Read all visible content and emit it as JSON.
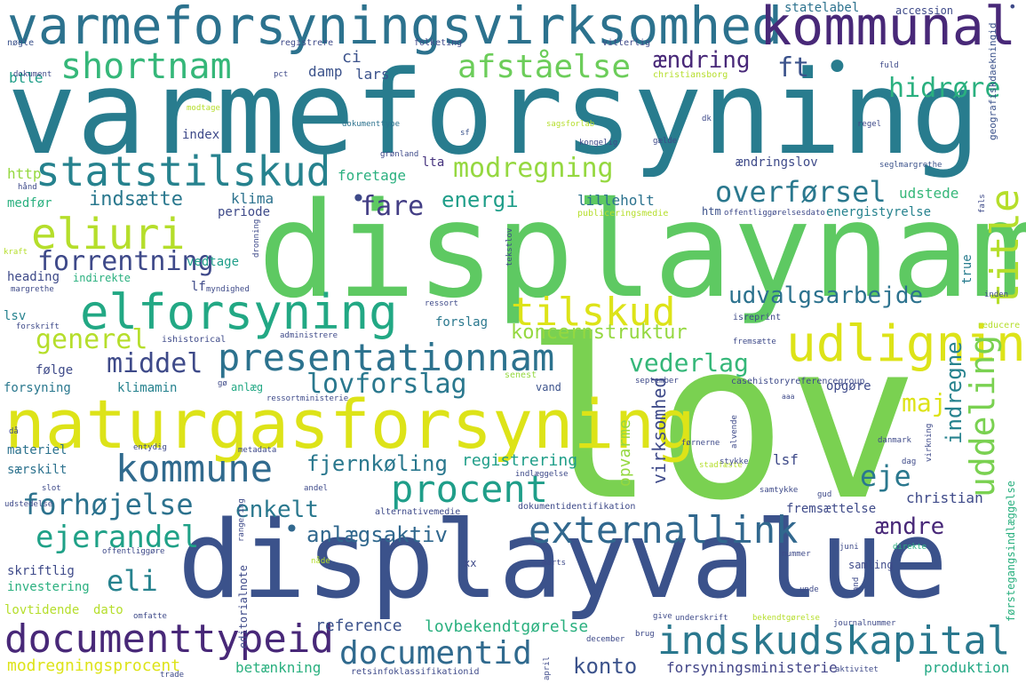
{
  "words": [
    {
      "text": "lov",
      "color": "#7ad151"
    },
    {
      "text": "varmeforsyning",
      "color": "#287c8e"
    },
    {
      "text": "displaynam",
      "color": "#5ec962"
    },
    {
      "text": "displayvalue",
      "color": "#3b528b"
    },
    {
      "text": "naturgasforsyning",
      "color": "#dde318"
    },
    {
      "text": "varmeforsyningsvirksomhed",
      "color": "#2c728e"
    },
    {
      "text": "kommunal",
      "color": "#482878"
    },
    {
      "text": "elforsyning",
      "color": "#22a884"
    },
    {
      "text": "udligning",
      "color": "#dde318"
    },
    {
      "text": "statstilskud",
      "color": "#26828e"
    },
    {
      "text": "documenttypeid",
      "color": "#482878"
    },
    {
      "text": "indskudskapital",
      "color": "#2a788e"
    },
    {
      "text": "presentationnam",
      "color": "#2c728e"
    },
    {
      "text": "externallink",
      "color": "#31688e"
    },
    {
      "text": "kommune",
      "color": "#306a8e"
    },
    {
      "text": "procent",
      "color": "#1f9e89"
    },
    {
      "text": "eliuri",
      "color": "#b5de2b"
    },
    {
      "text": "shortnam",
      "color": "#35b779"
    },
    {
      "text": "afståelse",
      "color": "#6ccd5a"
    },
    {
      "text": "tilskud",
      "color": "#dde318"
    },
    {
      "text": "uddeling",
      "color": "#7ad151"
    },
    {
      "text": "title",
      "color": "#b5de2b"
    },
    {
      "text": "modregning",
      "color": "#95d840"
    },
    {
      "text": "overførsel",
      "color": "#2a788e"
    },
    {
      "text": "documentid",
      "color": "#306a8e"
    },
    {
      "text": "forhøjelse",
      "color": "#2c728e"
    },
    {
      "text": "generel",
      "color": "#b5de2b"
    },
    {
      "text": "middel",
      "color": "#3e4a89"
    },
    {
      "text": "ejerandel",
      "color": "#1fa187"
    },
    {
      "text": "hidrøre",
      "color": "#2ab07f"
    },
    {
      "text": "forrentning",
      "color": "#3e4989"
    },
    {
      "text": "lovforslag",
      "color": "#2a788e"
    },
    {
      "text": "vederlag",
      "color": "#35b779"
    },
    {
      "text": "udvalgsarbejde",
      "color": "#2c728e"
    },
    {
      "text": "fare",
      "color": "#433e85"
    },
    {
      "text": "ændring",
      "color": "#482878"
    },
    {
      "text": "ft",
      "color": "#3b528b"
    },
    {
      "text": "eli",
      "color": "#26828e"
    },
    {
      "text": "enkelt",
      "color": "#2a788e"
    },
    {
      "text": "fjernkøling",
      "color": "#2a788e"
    },
    {
      "text": "anlægsaktiv",
      "color": "#31688e"
    },
    {
      "text": "ændre",
      "color": "#482878"
    },
    {
      "text": "eje",
      "color": "#2a788e"
    },
    {
      "text": "indregne",
      "color": "#26828e"
    },
    {
      "text": "maj",
      "color": "#dde318"
    },
    {
      "text": "koncernstruktur",
      "color": "#95d840"
    },
    {
      "text": "konto",
      "color": "#3b528b"
    },
    {
      "text": "energi",
      "color": "#1f9e89"
    },
    {
      "text": "indsætte",
      "color": "#2a788e"
    },
    {
      "text": "virksomhed",
      "color": "#3e4a89"
    },
    {
      "text": "opvarme",
      "color": "#95d840"
    },
    {
      "text": "registrering",
      "color": "#1f9e89"
    },
    {
      "text": "reference",
      "color": "#3b528b"
    },
    {
      "text": "lovbekendtgørelse",
      "color": "#2ab07f"
    },
    {
      "text": "modregningsprocent",
      "color": "#dde318"
    },
    {
      "text": "betænkning",
      "color": "#2ab07f"
    },
    {
      "text": "forsyningsministerie",
      "color": "#414487"
    },
    {
      "text": "produktion",
      "color": "#22a884"
    },
    {
      "text": "statelabel",
      "color": "#2c728e"
    },
    {
      "text": "accession",
      "color": "#3e4a89"
    },
    {
      "text": "btle",
      "color": "#1f9e89"
    },
    {
      "text": "ci",
      "color": "#3b528b"
    },
    {
      "text": "lars",
      "color": "#3b528b"
    },
    {
      "text": "damp",
      "color": "#3b528b"
    },
    {
      "text": "index",
      "color": "#3e4a89"
    },
    {
      "text": "lta",
      "color": "#46337e"
    },
    {
      "text": "foretage",
      "color": "#2ab07f"
    },
    {
      "text": "ændringslov",
      "color": "#3e4a89"
    },
    {
      "text": "lilleholt",
      "color": "#2c728e"
    },
    {
      "text": "udstede",
      "color": "#35b779"
    },
    {
      "text": "energistyrelse",
      "color": "#26828e"
    },
    {
      "text": "htm",
      "color": "#3b528b"
    },
    {
      "text": "klima",
      "color": "#2c728e"
    },
    {
      "text": "periode",
      "color": "#3e4a89"
    },
    {
      "text": "http",
      "color": "#95d840"
    },
    {
      "text": "medfør",
      "color": "#2ab07f"
    },
    {
      "text": "vedtage",
      "color": "#1f9e89"
    },
    {
      "text": "heading",
      "color": "#3e4a89"
    },
    {
      "text": "lf",
      "color": "#3e4a89"
    },
    {
      "text": "lsv",
      "color": "#26828e"
    },
    {
      "text": "følge",
      "color": "#3e4a89"
    },
    {
      "text": "forslag",
      "color": "#2a788e"
    },
    {
      "text": "true",
      "color": "#287c8e"
    },
    {
      "text": "opgøre",
      "color": "#3e4a89"
    },
    {
      "text": "forsyning",
      "color": "#2a788e"
    },
    {
      "text": "klimamin",
      "color": "#26828e"
    },
    {
      "text": "anlæg",
      "color": "#22a884"
    },
    {
      "text": "vand",
      "color": "#3b528b"
    },
    {
      "text": "materiel",
      "color": "#2c728e"
    },
    {
      "text": "særskilt",
      "color": "#2c728e"
    },
    {
      "text": "lsf",
      "color": "#3e4a89"
    },
    {
      "text": "christian",
      "color": "#3e4a89"
    },
    {
      "text": "fremsættelse",
      "color": "#3e4a89"
    },
    {
      "text": "skriftlig",
      "color": "#3e4a89"
    },
    {
      "text": "investering",
      "color": "#2ab07f"
    },
    {
      "text": "xx",
      "color": "#3e4a89"
    },
    {
      "text": "samling",
      "color": "#3e4a89"
    },
    {
      "text": "lovtidende",
      "color": "#b5de2b"
    },
    {
      "text": "dato",
      "color": "#b5de2b"
    },
    {
      "text": "editorialnote",
      "color": "#3e4a89"
    },
    {
      "text": "førstegangsindlæggelse",
      "color": "#2ab07f"
    },
    {
      "text": "geografiskdaekningid",
      "color": "#3b528b"
    },
    {
      "text": "nøgle",
      "color": "#3b528b"
    },
    {
      "text": "registrere",
      "color": "#3e4a89"
    },
    {
      "text": "folketing",
      "color": "#3e4a89"
    },
    {
      "text": "vitterlig",
      "color": "#3e4a89"
    },
    {
      "text": "dokument",
      "color": "#3e4a89"
    },
    {
      "text": "pct",
      "color": "#3e4a89"
    },
    {
      "text": "fuld",
      "color": "#3e4a89"
    },
    {
      "text": "christiansborg",
      "color": "#b5de2b"
    },
    {
      "text": "modtage",
      "color": "#b5de2b"
    },
    {
      "text": "dokumenttype",
      "color": "#2c728e"
    },
    {
      "text": "sf",
      "color": "#3b528b"
    },
    {
      "text": "sagsforlab",
      "color": "#b5de2b"
    },
    {
      "text": "dk",
      "color": "#3e4a89"
    },
    {
      "text": "regel",
      "color": "#3e4a89"
    },
    {
      "text": "kongelig",
      "color": "#3e4a89"
    },
    {
      "text": "gælde",
      "color": "#3e4a89"
    },
    {
      "text": "grønland",
      "color": "#3e4a89"
    },
    {
      "text": "seglmargrethe",
      "color": "#3b528b"
    },
    {
      "text": "hånd",
      "color": "#3e4a89"
    },
    {
      "text": "publiceringsmedie",
      "color": "#b5de2b"
    },
    {
      "text": "offentliggørelsesdato",
      "color": "#3e4a89"
    },
    {
      "text": "fals",
      "color": "#3e4a89"
    },
    {
      "text": "kraft",
      "color": "#b5de2b"
    },
    {
      "text": "dronning",
      "color": "#3e4a89"
    },
    {
      "text": "tekstlov",
      "color": "#3e4a89"
    },
    {
      "text": "margrethe",
      "color": "#3e4a89"
    },
    {
      "text": "indirekte",
      "color": "#2ab07f"
    },
    {
      "text": "myndighed",
      "color": "#3e4a89"
    },
    {
      "text": "inden",
      "color": "#3e4a89"
    },
    {
      "text": "ressort",
      "color": "#3e4a89"
    },
    {
      "text": "forskrift",
      "color": "#3e4a89"
    },
    {
      "text": "administrere",
      "color": "#3e4a89"
    },
    {
      "text": "isreprint",
      "color": "#3e4a89"
    },
    {
      "text": "ishistorical",
      "color": "#3e4a89"
    },
    {
      "text": "fremsætte",
      "color": "#3e4a89"
    },
    {
      "text": "reducere",
      "color": "#b5de2b"
    },
    {
      "text": "gø",
      "color": "#3e4a89"
    },
    {
      "text": "senest",
      "color": "#95d840"
    },
    {
      "text": "september",
      "color": "#3e4a89"
    },
    {
      "text": "casehistoryreferencegroup",
      "color": "#3e4a89"
    },
    {
      "text": "ressortministerie",
      "color": "#3e4a89"
    },
    {
      "text": "aaa",
      "color": "#3e4a89"
    },
    {
      "text": "entydig",
      "color": "#3e4a89"
    },
    {
      "text": "metadata",
      "color": "#3e4a89"
    },
    {
      "text": "førnerne",
      "color": "#3e4a89"
    },
    {
      "text": "stadfæste",
      "color": "#b5de2b"
    },
    {
      "text": "danmark",
      "color": "#3e4a89"
    },
    {
      "text": "virkning",
      "color": "#3e4a89"
    },
    {
      "text": "stykke",
      "color": "#3e4a89"
    },
    {
      "text": "dag",
      "color": "#3e4a89"
    },
    {
      "text": "indlæggelse",
      "color": "#3e4a89"
    },
    {
      "text": "slot",
      "color": "#3e4a89"
    },
    {
      "text": "andel",
      "color": "#3e4a89"
    },
    {
      "text": "gud",
      "color": "#3e4a89"
    },
    {
      "text": "samtykke",
      "color": "#3e4a89"
    },
    {
      "text": "udstedelse",
      "color": "#3e4a89"
    },
    {
      "text": "dokumentidentifikation",
      "color": "#3e4a89"
    },
    {
      "text": "alternativemedie",
      "color": "#3e4a89"
    },
    {
      "text": "rangering",
      "color": "#3e4a89"
    },
    {
      "text": "offentliggøre",
      "color": "#3e4a89"
    },
    {
      "text": "nåde",
      "color": "#b5de2b"
    },
    {
      "text": "nummer",
      "color": "#3e4a89"
    },
    {
      "text": "marts",
      "color": "#3e4a89"
    },
    {
      "text": "juni",
      "color": "#3e4a89"
    },
    {
      "text": "direkte",
      "color": "#2ab07f"
    },
    {
      "text": "omfatte",
      "color": "#3e4a89"
    },
    {
      "text": "unde",
      "color": "#3e4a89"
    },
    {
      "text": "underskrift",
      "color": "#3e4a89"
    },
    {
      "text": "give",
      "color": "#3e4a89"
    },
    {
      "text": "bekendtgørelse",
      "color": "#b5de2b"
    },
    {
      "text": "journalnummer",
      "color": "#3e4a89"
    },
    {
      "text": "brug",
      "color": "#3e4a89"
    },
    {
      "text": "december",
      "color": "#3e4a89"
    },
    {
      "text": "april",
      "color": "#3e4a89"
    },
    {
      "text": "aktivitet",
      "color": "#3e4a89"
    },
    {
      "text": "retsinfoklassifikationid",
      "color": "#3e4a89"
    },
    {
      "text": "trade",
      "color": "#3e4a89"
    },
    {
      "text": "and",
      "color": "#3e4a89"
    },
    {
      "text": "alvende",
      "color": "#3e4a89"
    },
    {
      "text": "då",
      "color": "#3e4a89"
    }
  ]
}
